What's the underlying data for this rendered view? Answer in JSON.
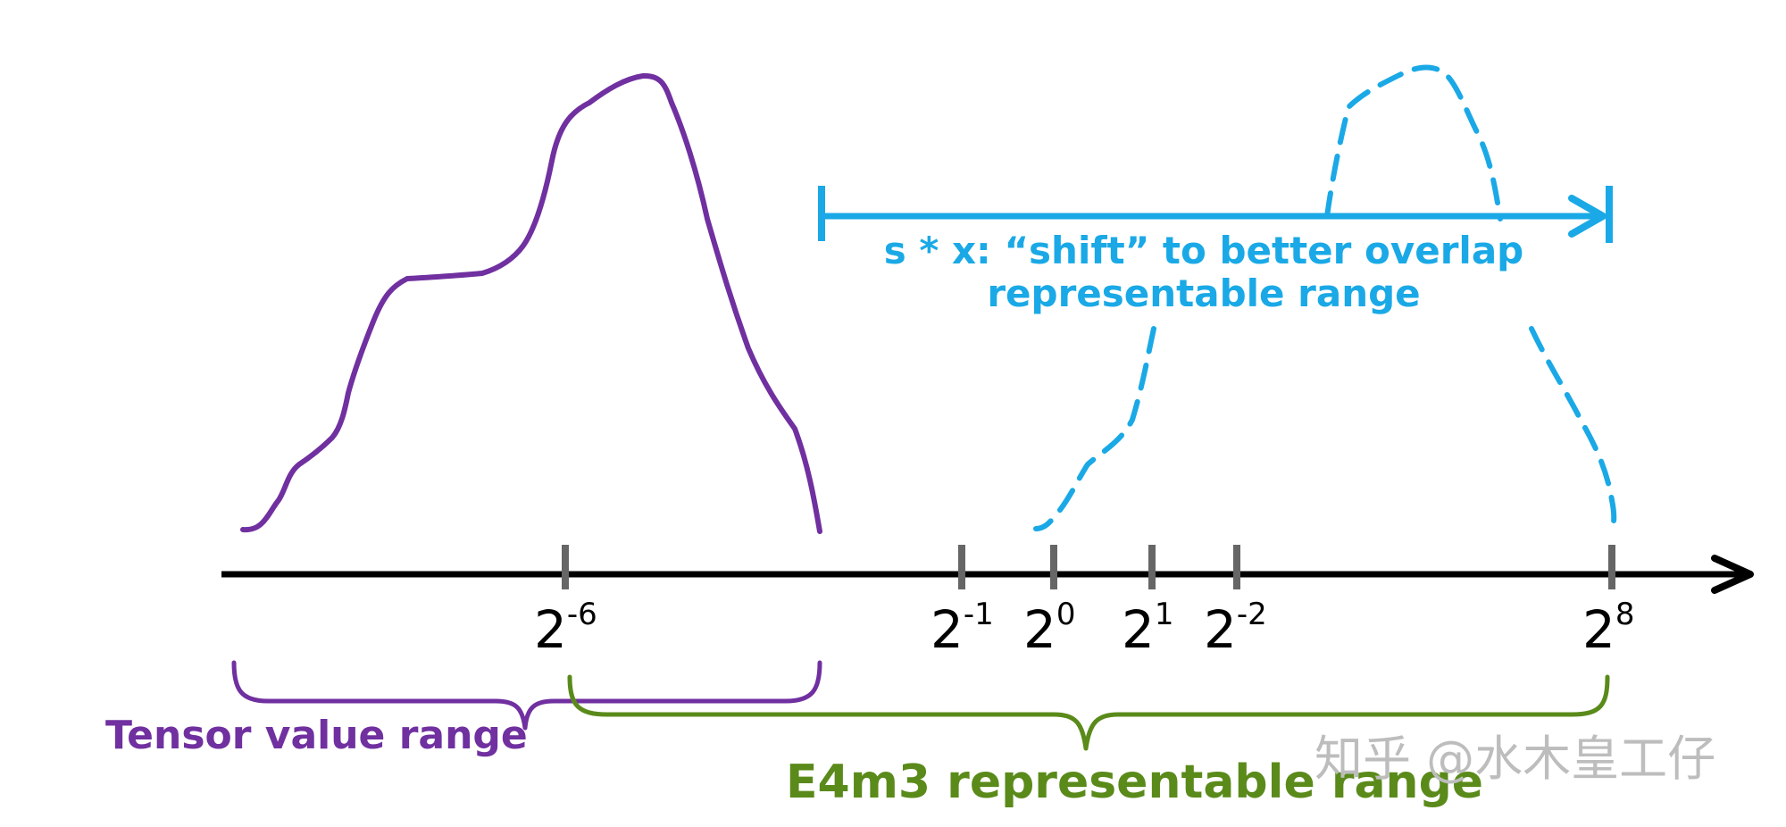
{
  "colors": {
    "purple": "#7030a0",
    "blue": "#1aa9e6",
    "green": "#5a8a1a",
    "axis": "#000000",
    "tick": "#666666",
    "watermark": "#bdbdbd"
  },
  "axis": {
    "ticks": [
      {
        "base": "2",
        "exp": "-6"
      },
      {
        "base": "2",
        "exp": "-1"
      },
      {
        "base": "2",
        "exp": "0"
      },
      {
        "base": "2",
        "exp": "1"
      },
      {
        "base": "2",
        "exp": "-2"
      },
      {
        "base": "2",
        "exp": "8"
      }
    ]
  },
  "annotations": {
    "shift_line1": "s * x: “shift” to better overlap",
    "shift_line2": "representable range",
    "tensor_range": "Tensor value range",
    "e4m3_range": "E4m3 representable range"
  },
  "watermark": "知乎 @水木皇工仔"
}
